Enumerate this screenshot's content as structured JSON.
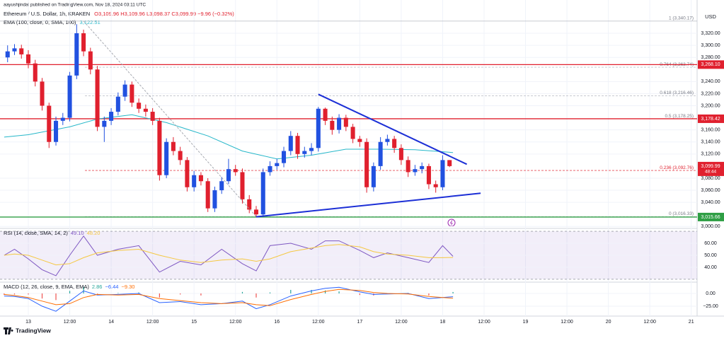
{
  "header": {
    "publisher": "aayushjindal published on TradingView.com, Nov 18, 2024 03:11 UTC",
    "symbol": "Ethereum / U.S. Dollar, 1h, KRAKEN",
    "ohlc": "O3,109.96 H3,109.96 L3,098.37 C3,099.99 −9.96 (−0.32%)",
    "ema_label": "EMA (100, close, 0, SMA, 100)",
    "ema_value": "3,122.51",
    "currency": "USD"
  },
  "chart_data": [
    {
      "type": "candlestick",
      "up_color": "#2151e0",
      "down_color": "#e0202e",
      "x": [
        -6,
        -4,
        -2,
        0,
        2,
        4,
        6,
        8,
        10,
        12,
        14,
        16,
        18,
        20,
        22,
        24,
        26,
        28,
        30,
        32,
        34,
        36,
        38,
        40,
        42,
        44,
        46,
        48,
        50,
        52,
        54,
        56,
        58,
        60,
        62,
        64,
        66,
        68,
        70,
        72,
        74,
        76,
        78,
        80,
        82,
        84,
        86,
        88,
        90,
        92,
        94,
        96,
        98,
        100,
        102,
        104,
        106,
        108,
        110,
        112,
        114,
        116,
        118,
        120,
        122
      ],
      "open": [
        3280,
        3290,
        3295,
        3285,
        3270,
        3240,
        3200,
        3140,
        3175,
        3180,
        3250,
        3320,
        3290,
        3260,
        3165,
        3175,
        3190,
        3215,
        3235,
        3205,
        3195,
        3190,
        3175,
        3085,
        3140,
        3125,
        3110,
        3065,
        3085,
        3075,
        3030,
        3060,
        3075,
        3095,
        3090,
        3045,
        3028,
        3020,
        3090,
        3100,
        3105,
        3125,
        3150,
        3120,
        3125,
        3130,
        3195,
        3175,
        3160,
        3180,
        3165,
        3145,
        3140,
        3065,
        3100,
        3140,
        3145,
        3130,
        3110,
        3090,
        3095,
        3100,
        3070,
        3065,
        3109.96
      ],
      "high": [
        3300,
        3302,
        3301,
        3292,
        3276,
        3246,
        3205,
        3182,
        3188,
        3256,
        3335,
        3326,
        3296,
        3266,
        3182,
        3196,
        3222,
        3242,
        3240,
        3212,
        3202,
        3196,
        3180,
        3146,
        3148,
        3132,
        3115,
        3092,
        3090,
        3080,
        3066,
        3082,
        3112,
        3102,
        3096,
        3052,
        3034,
        3096,
        3108,
        3112,
        3132,
        3158,
        3155,
        3132,
        3138,
        3198,
        3197,
        3182,
        3186,
        3185,
        3170,
        3150,
        3146,
        3106,
        3148,
        3152,
        3150,
        3136,
        3116,
        3102,
        3106,
        3104,
        3076,
        3118,
        3109.96
      ],
      "low": [
        3272,
        3284,
        3278,
        3262,
        3232,
        3192,
        3130,
        3134,
        3168,
        3174,
        3244,
        3282,
        3252,
        3158,
        3140,
        3168,
        3184,
        3208,
        3198,
        3188,
        3182,
        3168,
        3076,
        3080,
        3118,
        3102,
        3058,
        3058,
        3068,
        3024,
        3024,
        3054,
        3070,
        3084,
        3038,
        3022,
        3016.33,
        3018,
        3084,
        3094,
        3098,
        3118,
        3112,
        3114,
        3118,
        3124,
        3168,
        3152,
        3154,
        3158,
        3138,
        3132,
        3056,
        3058,
        3094,
        3134,
        3122,
        3102,
        3082,
        3084,
        3088,
        3062,
        3056,
        3060,
        3098.37
      ],
      "close": [
        3290,
        3295,
        3285,
        3270,
        3240,
        3200,
        3140,
        3175,
        3180,
        3250,
        3320,
        3290,
        3260,
        3165,
        3175,
        3190,
        3215,
        3235,
        3205,
        3195,
        3190,
        3175,
        3085,
        3140,
        3125,
        3110,
        3065,
        3085,
        3075,
        3030,
        3060,
        3075,
        3095,
        3090,
        3045,
        3028,
        3020,
        3090,
        3100,
        3105,
        3125,
        3150,
        3120,
        3125,
        3130,
        3195,
        3175,
        3160,
        3180,
        3165,
        3145,
        3140,
        3065,
        3100,
        3140,
        3145,
        3130,
        3110,
        3090,
        3095,
        3100,
        3070,
        3065,
        3109.96,
        3099.99
      ],
      "xlim": [
        -8.2,
        193.7
      ],
      "ylim": [
        2998,
        3354
      ],
      "xticks": [
        {
          "value": 0,
          "label": "13"
        },
        {
          "value": 12,
          "label": "12:00"
        },
        {
          "value": 24,
          "label": "14"
        },
        {
          "value": 36,
          "label": "12:00"
        },
        {
          "value": 48,
          "label": "15"
        },
        {
          "value": 60,
          "label": "12:00"
        },
        {
          "value": 72,
          "label": "16"
        },
        {
          "value": 84,
          "label": "12:00"
        },
        {
          "value": 96,
          "label": "17"
        },
        {
          "value": 108,
          "label": "12:00"
        },
        {
          "value": 120,
          "label": "18"
        },
        {
          "value": 132,
          "label": "12:00"
        },
        {
          "value": 144,
          "label": "19"
        },
        {
          "value": 156,
          "label": "12:00"
        },
        {
          "value": 168,
          "label": "20"
        },
        {
          "value": 180,
          "label": "12:00"
        },
        {
          "value": 192,
          "label": "21"
        }
      ],
      "yticks": [
        {
          "value": 3000,
          "label": "3,000.00"
        },
        {
          "value": 3040,
          "label": "3,040.00"
        },
        {
          "value": 3060,
          "label": "3,060.00"
        },
        {
          "value": 3080,
          "label": "3,080.00"
        },
        {
          "value": 3120,
          "label": "3,120.00"
        },
        {
          "value": 3140,
          "label": "3,140.00"
        },
        {
          "value": 3160,
          "label": "3,160.00"
        },
        {
          "value": 3200,
          "label": "3,200.00"
        },
        {
          "value": 3220,
          "label": "3,220.00"
        },
        {
          "value": 3240,
          "label": "3,240.00"
        },
        {
          "value": 3280,
          "label": "3,280.00"
        },
        {
          "value": 3300,
          "label": "3,300.00"
        },
        {
          "value": 3320,
          "label": "3,320.00"
        }
      ],
      "ema": {
        "color": "#26b7c9",
        "x": [
          -7,
          0,
          12,
          20,
          30,
          40,
          52,
          62,
          72,
          82,
          92,
          102,
          112,
          123
        ],
        "values": [
          3148,
          3152,
          3165,
          3178,
          3185,
          3172,
          3150,
          3125,
          3112,
          3118,
          3128,
          3128,
          3127,
          3122.51
        ]
      },
      "levels": [
        {
          "value": 3340.17,
          "label": "1 (3,340.17)",
          "color": "#b2b5be",
          "style": "solid"
        },
        {
          "value": 3263.74,
          "label": "0.764 (3,263.74)",
          "color": "#b2b5be",
          "style": "dashed"
        },
        {
          "value": 3216.46,
          "label": "0.618 (3,216.46)",
          "color": "#b2b5be",
          "style": "dashed"
        },
        {
          "value": 3178.25,
          "label": "0.5 (3,178.25)",
          "color": "#b2b5be",
          "style": "dashed"
        },
        {
          "value": 3092.76,
          "label": "0.236 (3,092.76)",
          "color": "#e0202e",
          "style": "dashed"
        },
        {
          "value": 3016.33,
          "label": "0 (3,016.33)",
          "color": "#b2b5be",
          "style": "dashed"
        }
      ],
      "lines": [
        {
          "value": 3268.1,
          "color": "#e0202e"
        },
        {
          "value": 3178.42,
          "color": "#e0202e"
        },
        {
          "value": 3015.66,
          "color": "#2e9e44"
        }
      ],
      "price_tags": [
        {
          "value": 3268.1,
          "label": "3,268.10",
          "color": "#e0202e"
        },
        {
          "value": 3178.42,
          "label": "3,178.42",
          "color": "#e0202e"
        },
        {
          "value": 3099.99,
          "label": "3,099.99",
          "color": "#e0202e",
          "countdown": "48:44"
        },
        {
          "value": 3015.66,
          "label": "3,015.66",
          "color": "#2e9e44"
        }
      ],
      "trendlines": [
        {
          "x": [
            84,
            127
          ],
          "values": [
            3219,
            3103
          ],
          "color": "#1c2fd6",
          "style": "solid"
        },
        {
          "x": [
            66,
            131
          ],
          "values": [
            3016,
            3055
          ],
          "color": "#1c2fd6",
          "style": "solid"
        },
        {
          "x": [
            16,
            66
          ],
          "values": [
            3340.17,
            3016.33
          ],
          "color": "#a0a3ab",
          "style": "dashed"
        }
      ]
    },
    {
      "type": "line",
      "title": "RSI (14, close, SMA, 14, 2)",
      "value_labels": [
        "49.10",
        "48.20"
      ],
      "ylim": [
        28.2,
        71.8
      ],
      "yticks": [
        {
          "value": 40,
          "label": "40.00"
        },
        {
          "value": 50,
          "label": "50.00"
        },
        {
          "value": 60,
          "label": "60.00"
        }
      ],
      "band": [
        30,
        70
      ],
      "band_color": "#7e57c2",
      "series": [
        {
          "name": "RSI",
          "color": "#7e57c2",
          "x": [
            -7,
            -4,
            0,
            4,
            8,
            12,
            16,
            20,
            26,
            32,
            38,
            44,
            50,
            56,
            62,
            66,
            70,
            76,
            82,
            86,
            90,
            96,
            100,
            104,
            110,
            116,
            120,
            123
          ],
          "values": [
            50,
            55,
            47,
            38,
            33,
            50,
            66,
            50,
            55,
            58,
            36,
            45,
            42,
            55,
            43,
            37,
            58,
            60,
            55,
            62,
            62,
            54,
            48,
            52,
            48,
            44,
            58,
            49.1
          ]
        },
        {
          "name": "RSI-based MA",
          "color": "#f5c842",
          "x": [
            -7,
            -4,
            0,
            4,
            8,
            12,
            16,
            20,
            26,
            32,
            38,
            44,
            50,
            56,
            62,
            66,
            70,
            76,
            82,
            86,
            90,
            96,
            100,
            104,
            110,
            116,
            120,
            123
          ],
          "values": [
            50,
            51,
            50,
            46,
            42,
            43,
            48,
            52,
            54,
            55,
            50,
            46,
            44,
            46,
            47,
            45,
            47,
            53,
            56,
            58,
            59,
            57,
            53,
            51,
            50,
            48,
            48,
            48.2
          ]
        }
      ]
    },
    {
      "type": "macd",
      "title": "MACD (12, 26, close, 9, EMA, EMA)",
      "value_labels": [
        "2.86",
        "−6.44",
        "−9.30"
      ],
      "ylim": [
        -44.4,
        20.8
      ],
      "yticks": [
        {
          "value": 0,
          "label": "0.00"
        },
        {
          "value": -25,
          "label": "−25.00"
        }
      ],
      "up_color": "#26a69a",
      "down_color": "#ef5350",
      "x": [
        -7,
        -4,
        0,
        4,
        8,
        12,
        16,
        20,
        26,
        32,
        38,
        44,
        50,
        56,
        62,
        66,
        70,
        76,
        82,
        86,
        90,
        96,
        100,
        104,
        110,
        116,
        120,
        123
      ],
      "histogram": [
        -3,
        -2,
        -2,
        -10,
        -13,
        5,
        13,
        -1,
        1,
        2,
        -8,
        -2,
        -4,
        0,
        3,
        -8,
        2,
        7,
        7,
        6,
        4,
        -3,
        -4,
        -1,
        1,
        -4,
        0,
        2.86
      ],
      "series": [
        {
          "name": "MACD",
          "color": "#2962ff",
          "values": [
            -5,
            -6,
            -10,
            -25,
            -35,
            -15,
            5,
            -3,
            -2,
            0,
            -18,
            -16,
            -22,
            -20,
            -15,
            -30,
            -22,
            -5,
            5,
            10,
            12,
            3,
            -2,
            -1,
            0,
            -10,
            -8,
            -6.44
          ]
        },
        {
          "name": "Signal",
          "color": "#ff6d00",
          "values": [
            -2,
            -4,
            -8,
            -15,
            -22,
            -20,
            -8,
            -2,
            -3,
            -2,
            -10,
            -14,
            -18,
            -20,
            -18,
            -22,
            -24,
            -12,
            -2,
            4,
            8,
            6,
            2,
            0,
            -1,
            -6,
            -8,
            -9.3
          ]
        }
      ]
    }
  ],
  "footer": {
    "brand": "TradingView"
  }
}
